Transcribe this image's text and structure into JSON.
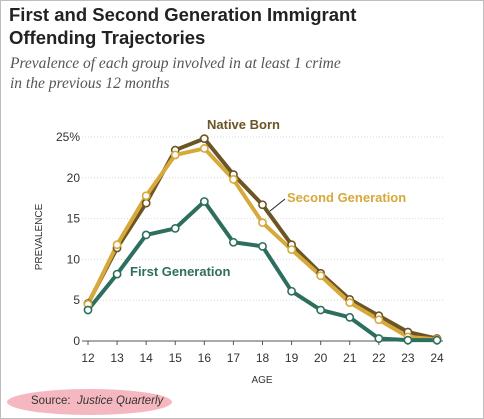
{
  "title_line1": "First and Second Generation Immigrant",
  "title_line2": "Offending Trajectories",
  "subtitle_line1": "Prevalence of each group involved in at least 1 crime",
  "subtitle_line2": "in the previous 12 months",
  "source_label": "Source:",
  "source_name": "Justice Quarterly",
  "chart_data": {
    "type": "line",
    "xlabel": "AGE",
    "ylabel": "PREVALENCE",
    "x": [
      12,
      13,
      14,
      15,
      16,
      17,
      18,
      19,
      20,
      21,
      22,
      23,
      24
    ],
    "ylim": [
      0,
      25
    ],
    "xlim": [
      12,
      24
    ],
    "y_ticks": [
      0,
      5,
      10,
      15,
      20,
      25
    ],
    "y_tick_labels": [
      "0",
      "5",
      "10",
      "15",
      "20",
      "25%"
    ],
    "grid": "horizontal",
    "legend": "direct labels on lines",
    "series": [
      {
        "name": "Native Born",
        "color": "#6b5524",
        "values": [
          4.6,
          11.4,
          16.9,
          23.4,
          24.8,
          20.4,
          16.7,
          11.8,
          8.3,
          5.1,
          3.1,
          1.1,
          0.3
        ]
      },
      {
        "name": "Second Generation",
        "color": "#d6a93a",
        "values": [
          4.5,
          11.8,
          17.8,
          22.8,
          23.6,
          19.8,
          14.5,
          11.2,
          8.0,
          4.7,
          2.6,
          0.5,
          0.2
        ]
      },
      {
        "name": "First Generation",
        "color": "#2e6e5e",
        "values": [
          3.8,
          8.2,
          13.0,
          13.8,
          17.1,
          12.1,
          11.6,
          6.1,
          3.8,
          2.9,
          0.3,
          0.1,
          0.1
        ]
      }
    ]
  }
}
